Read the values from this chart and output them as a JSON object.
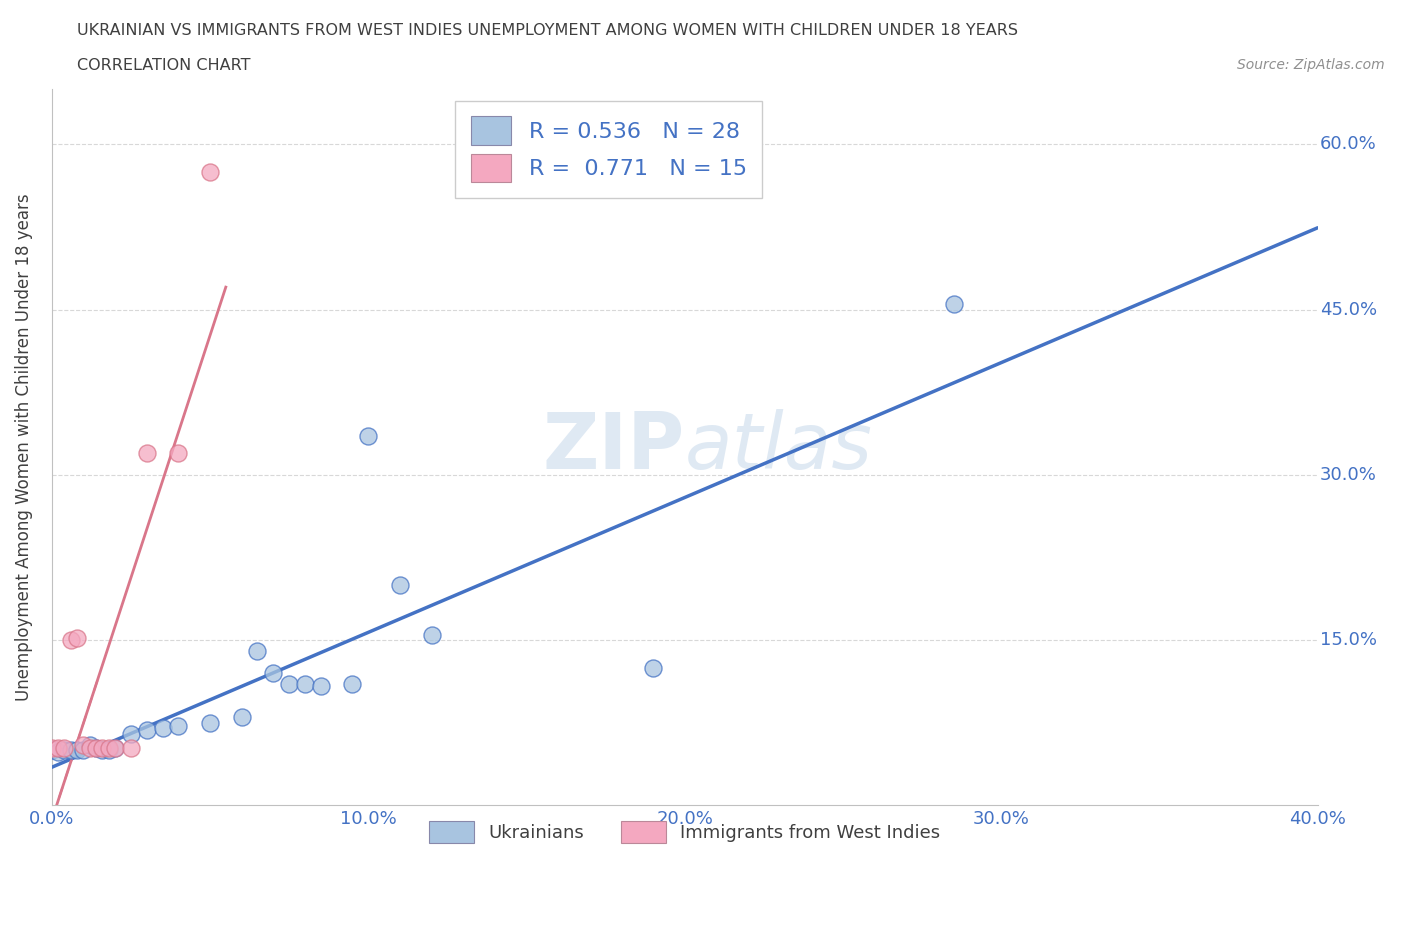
{
  "title_line1": "UKRAINIAN VS IMMIGRANTS FROM WEST INDIES UNEMPLOYMENT AMONG WOMEN WITH CHILDREN UNDER 18 YEARS",
  "title_line2": "CORRELATION CHART",
  "source": "Source: ZipAtlas.com",
  "ylabel": "Unemployment Among Women with Children Under 18 years",
  "watermark": "ZIPatlas",
  "blue_R": "0.536",
  "blue_N": "28",
  "pink_R": "0.771",
  "pink_N": "15",
  "blue_scatter_color": "#a8c4e0",
  "pink_scatter_color": "#f4a8c0",
  "blue_line_color": "#4472c4",
  "pink_line_color": "#d9768a",
  "legend_label_blue": "Ukrainians",
  "legend_label_pink": "Immigrants from West Indies",
  "blue_x": [
    0.0,
    0.002,
    0.004,
    0.006,
    0.008,
    0.01,
    0.012,
    0.014,
    0.016,
    0.018,
    0.02,
    0.025,
    0.03,
    0.035,
    0.04,
    0.05,
    0.06,
    0.065,
    0.07,
    0.075,
    0.08,
    0.085,
    0.095,
    0.1,
    0.11,
    0.12,
    0.19,
    0.285
  ],
  "blue_y": [
    0.05,
    0.048,
    0.05,
    0.05,
    0.05,
    0.05,
    0.055,
    0.052,
    0.05,
    0.05,
    0.052,
    0.065,
    0.068,
    0.07,
    0.072,
    0.075,
    0.08,
    0.14,
    0.12,
    0.11,
    0.11,
    0.108,
    0.11,
    0.335,
    0.2,
    0.155,
    0.125,
    0.455
  ],
  "pink_x": [
    0.0,
    0.002,
    0.004,
    0.006,
    0.008,
    0.01,
    0.012,
    0.014,
    0.016,
    0.018,
    0.02,
    0.025,
    0.03,
    0.04,
    0.05
  ],
  "pink_y": [
    0.052,
    0.052,
    0.052,
    0.15,
    0.152,
    0.055,
    0.052,
    0.052,
    0.052,
    0.052,
    0.052,
    0.052,
    0.32,
    0.32,
    0.575
  ],
  "xlim": [
    0.0,
    0.4
  ],
  "ylim": [
    0.0,
    0.65
  ],
  "xtick_vals": [
    0.0,
    0.1,
    0.2,
    0.3,
    0.4
  ],
  "ytick_vals": [
    0.0,
    0.15,
    0.3,
    0.45,
    0.6
  ],
  "xtick_labels": [
    "0.0%",
    "10.0%",
    "20.0%",
    "30.0%",
    "40.0%"
  ],
  "right_ytick_labels": [
    "60.0%",
    "45.0%",
    "30.0%",
    "15.0%"
  ],
  "grid_color": "#d8d8d8",
  "bg_color": "#ffffff",
  "title_color": "#404040",
  "source_color": "#909090",
  "tick_label_color": "#4472c4"
}
